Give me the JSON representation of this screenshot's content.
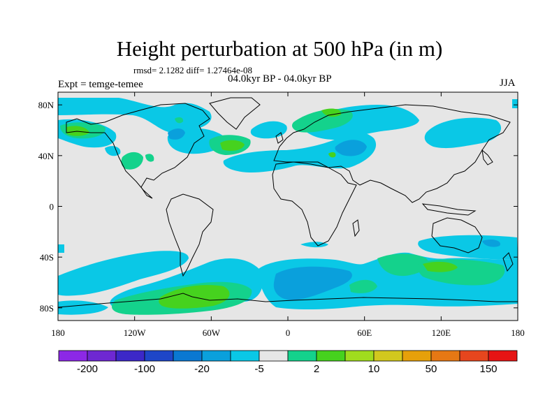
{
  "title": "Height perturbation at 500 hPa (in m)",
  "stats": "rmsd= 2.1282 diff= 1.27464e-08",
  "experiment": "Expt = temge-temee",
  "period": "04.0kyr BP - 04.0kyr BP",
  "season": "JJA",
  "map": {
    "lon_ticks": [
      "180",
      "120W",
      "60W",
      "0",
      "60E",
      "120E",
      "180"
    ],
    "lat_ticks": [
      "80N",
      "40N",
      "0",
      "40S",
      "80S"
    ],
    "background_color": "#e6e6e6",
    "coastline_color": "#000000"
  },
  "colorbar": {
    "colors": [
      "#8c28e6",
      "#6e28d2",
      "#3c28c8",
      "#1e46c8",
      "#0a78d2",
      "#0aa0dc",
      "#0ac8e6",
      "#e6e6e6",
      "#14d28c",
      "#46d21e",
      "#a0dc1e",
      "#d2c81e",
      "#e6a00a",
      "#e67814",
      "#e6461e",
      "#e61414"
    ],
    "labels": [
      "-200",
      "-100",
      "-20",
      "-5",
      "2",
      "10",
      "50",
      "150"
    ]
  }
}
